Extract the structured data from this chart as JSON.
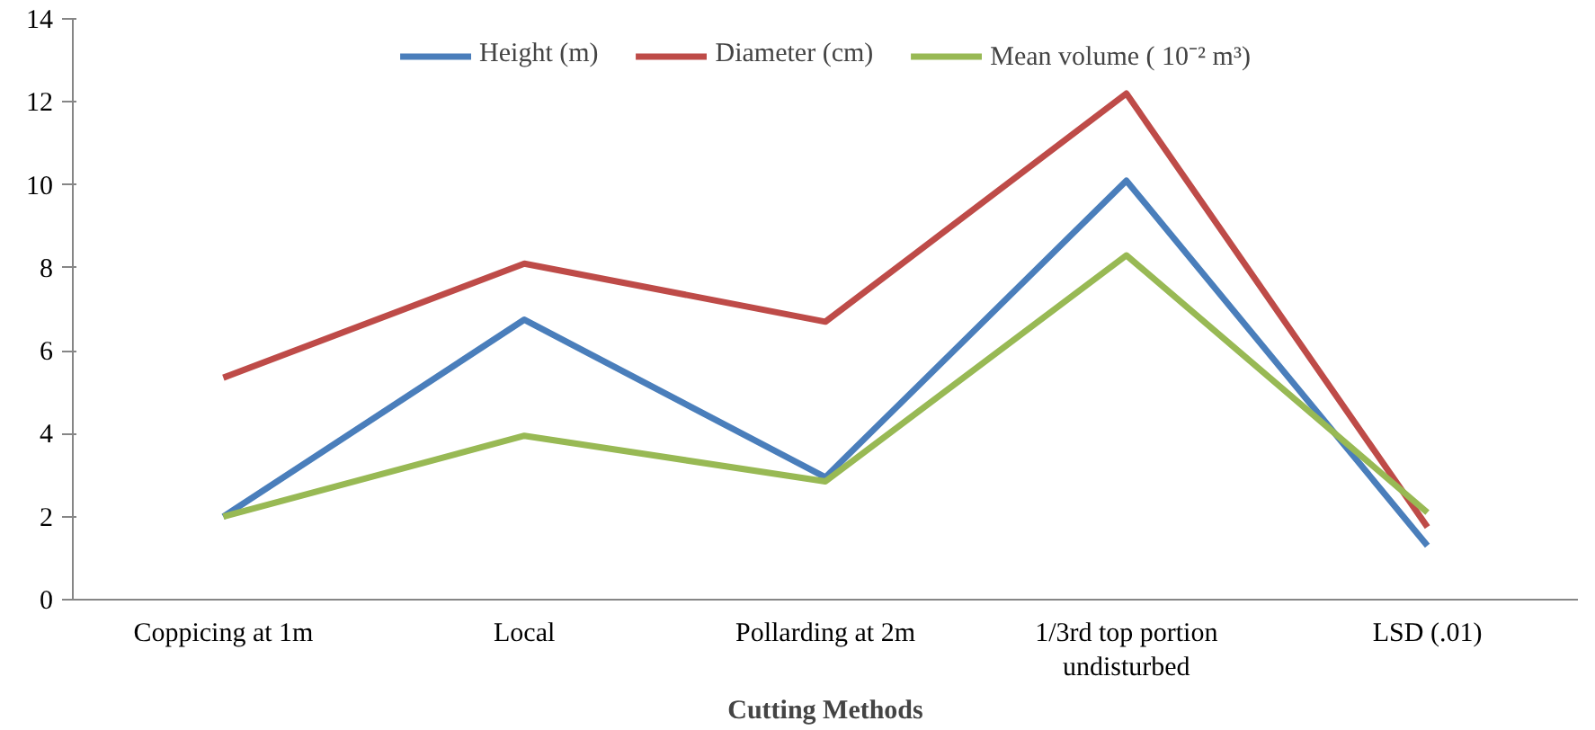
{
  "chart_data": {
    "type": "line",
    "xlabel": "Cutting Methods",
    "categories": [
      "Coppicing at 1m",
      "Local",
      "Pollarding at 2m",
      "1/3rd top portion undisturbed",
      "LSD (.01)"
    ],
    "series": [
      {
        "name": "Height (m)",
        "color": "#4a7ebb",
        "values": [
          2.0,
          6.75,
          2.95,
          10.1,
          1.3
        ]
      },
      {
        "name": "Diameter (cm)",
        "color": "#be4b48",
        "values": [
          5.35,
          8.1,
          6.7,
          12.2,
          1.75
        ]
      },
      {
        "name": "Mean volume ( 10⁻² m³)",
        "color": "#98b954",
        "values": [
          2.0,
          3.95,
          2.85,
          8.3,
          2.1
        ]
      }
    ],
    "ylim": [
      0,
      14
    ],
    "yticks": [
      0,
      2,
      4,
      6,
      8,
      10,
      12,
      14
    ],
    "grid": false,
    "legend": "top",
    "marker": "none",
    "line_style": "solid"
  }
}
